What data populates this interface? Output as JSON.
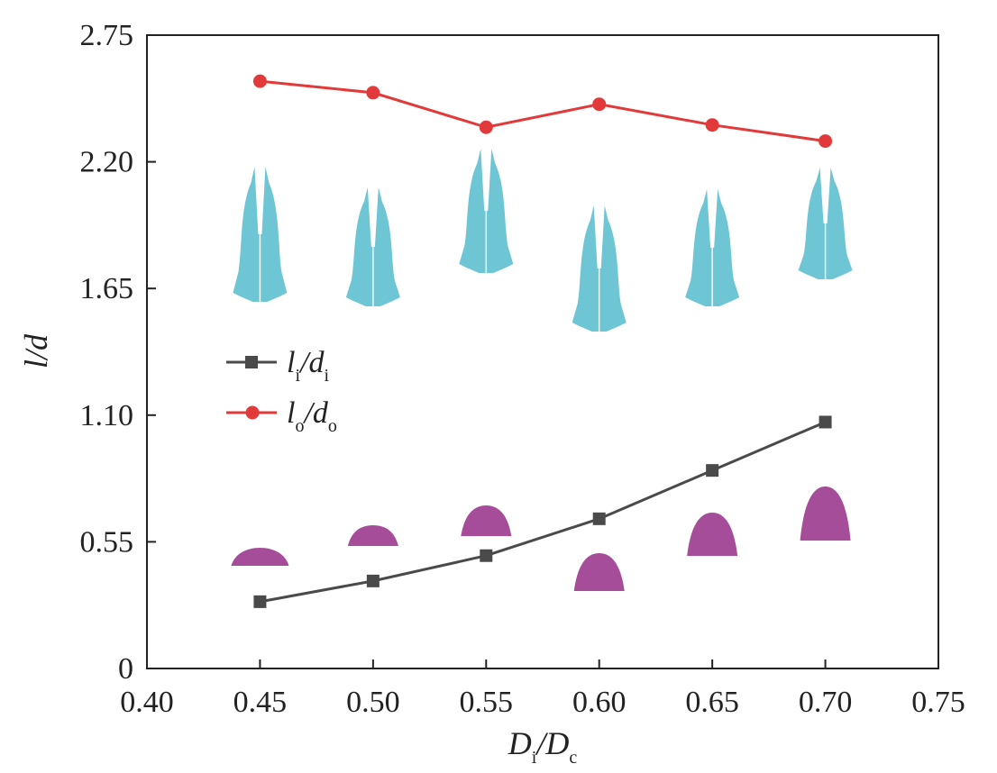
{
  "chart_data": {
    "type": "line",
    "xlabel": {
      "main": "D",
      "sub1": "i",
      "sep": "/",
      "main2": "D",
      "sub2": "c"
    },
    "ylabel": "l/d",
    "xlim": [
      0.4,
      0.75
    ],
    "ylim": [
      0,
      2.75
    ],
    "xticks": [
      "0.40",
      "0.45",
      "0.50",
      "0.55",
      "0.60",
      "0.65",
      "0.70",
      "0.75"
    ],
    "yticks": [
      "0",
      "0.55",
      "1.10",
      "1.65",
      "2.20",
      "2.75"
    ],
    "x": [
      0.45,
      0.5,
      0.55,
      0.6,
      0.65,
      0.7
    ],
    "series": [
      {
        "name": {
          "main": "l",
          "sub1": "i",
          "sep": "/",
          "main2": "d",
          "sub2": "i"
        },
        "marker": "square",
        "color": "#4a4a4a",
        "values": [
          0.29,
          0.38,
          0.49,
          0.65,
          0.86,
          1.07
        ]
      },
      {
        "name": {
          "main": "l",
          "sub1": "o",
          "sep": "/",
          "main2": "d",
          "sub2": "o"
        },
        "marker": "circle",
        "color": "#e23a3a",
        "values": [
          2.55,
          2.5,
          2.35,
          2.45,
          2.36,
          2.29
        ]
      }
    ],
    "legend_position": "middle-left",
    "grid": false,
    "inset_shape_colors": {
      "outer_jet": "#6ec6d4",
      "inner_jet": "#a64d9a"
    }
  }
}
